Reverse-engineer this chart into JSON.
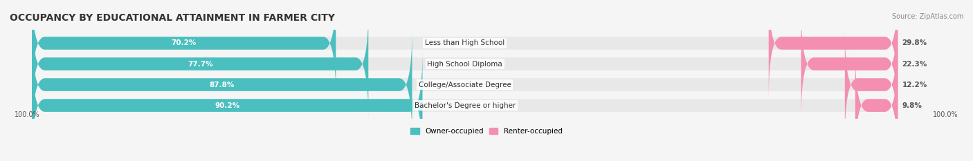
{
  "title": "OCCUPANCY BY EDUCATIONAL ATTAINMENT IN FARMER CITY",
  "source": "Source: ZipAtlas.com",
  "categories": [
    "Less than High School",
    "High School Diploma",
    "College/Associate Degree",
    "Bachelor's Degree or higher"
  ],
  "owner_values": [
    70.2,
    77.7,
    87.8,
    90.2
  ],
  "renter_values": [
    29.8,
    22.3,
    12.2,
    9.8
  ],
  "owner_color": "#4bbfbf",
  "renter_color": "#f48fb1",
  "bar_bg_color": "#e8e8e8",
  "background_color": "#f5f5f5",
  "title_fontsize": 10,
  "label_fontsize": 7.5,
  "tick_fontsize": 7,
  "source_fontsize": 7,
  "axis_label_left": "100.0%",
  "axis_label_right": "100.0%",
  "bar_height": 0.6,
  "figsize": [
    14.06,
    2.33
  ],
  "dpi": 100
}
